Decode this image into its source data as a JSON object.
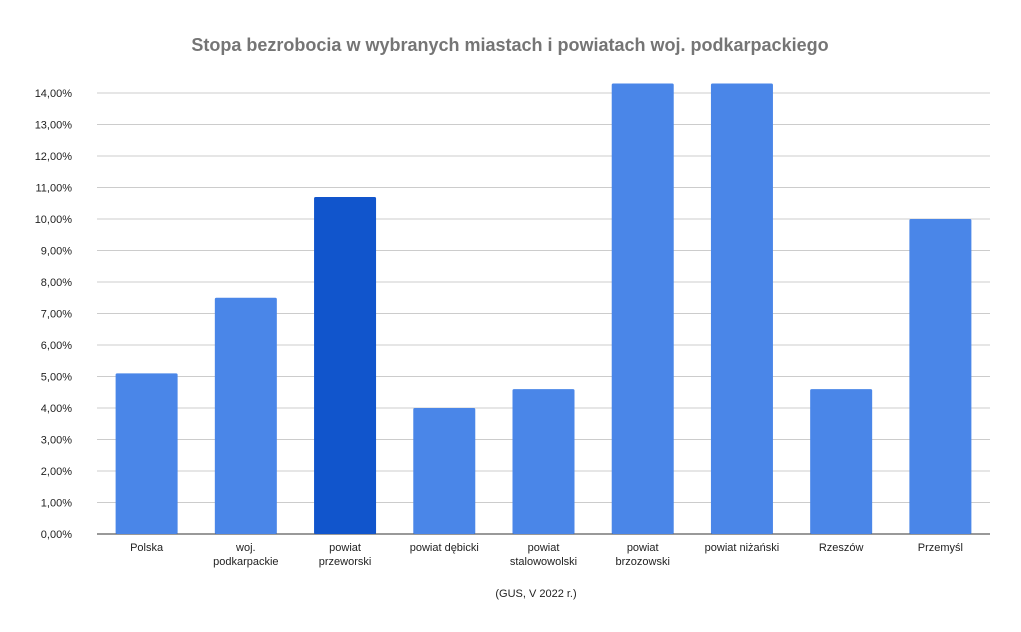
{
  "chart_data": {
    "type": "bar",
    "title": "Stopa bezrobocia w wybranych miastach i powiatach woj. podkarpackiego",
    "xlabel": "(GUS, V 2022 r.)",
    "ylabel": "",
    "categories": [
      [
        "Polska"
      ],
      [
        "woj.",
        "podkarpackie"
      ],
      [
        "powiat",
        "przeworski"
      ],
      [
        "powiat dębicki"
      ],
      [
        "powiat",
        "stalowowolski"
      ],
      [
        "powiat",
        "brzozowski"
      ],
      [
        "powiat niżański"
      ],
      [
        "Rzeszów"
      ],
      [
        "Przemyśl"
      ]
    ],
    "values": [
      5.1,
      7.5,
      10.7,
      4.0,
      4.6,
      14.3,
      14.3,
      4.6,
      10.0
    ],
    "highlight_index": 2,
    "ylim": [
      0,
      14
    ],
    "yticks": [
      "0,00%",
      "1,00%",
      "2,00%",
      "3,00%",
      "4,00%",
      "5,00%",
      "6,00%",
      "7,00%",
      "8,00%",
      "9,00%",
      "10,00%",
      "11,00%",
      "12,00%",
      "13,00%",
      "14,00%"
    ],
    "grid": true,
    "colors": {
      "bar": "#4a86e8",
      "highlight": "#1155cc",
      "grid": "#cccccc",
      "axis": "#333333"
    }
  }
}
